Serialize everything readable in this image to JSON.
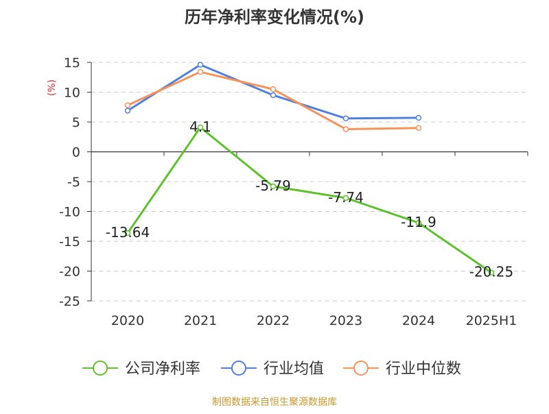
{
  "chart_data": {
    "type": "line",
    "title": "历年净利率变化情况(%)",
    "ylabel": "(%)",
    "xlabel": "",
    "categories": [
      "2020",
      "2021",
      "2022",
      "2023",
      "2024",
      "2025H1"
    ],
    "ylim": [
      -25,
      15
    ],
    "yticks": [
      15,
      10,
      5,
      0,
      -5,
      -10,
      -15,
      -20,
      -25
    ],
    "grid": true,
    "legend_position": "bottom",
    "series": [
      {
        "name": "公司净利率",
        "color": "#5cc12c",
        "values": [
          -13.64,
          4.1,
          -5.79,
          -7.74,
          -11.9,
          -20.25
        ],
        "data_labels": [
          "-13.64",
          "4.1",
          "-5.79",
          "-7.74",
          "-11.9",
          "-20.25"
        ]
      },
      {
        "name": "行业均值",
        "color": "#4f7fdc",
        "values": [
          6.9,
          14.6,
          9.5,
          5.6,
          5.7,
          null
        ]
      },
      {
        "name": "行业中位数",
        "color": "#f6925a",
        "values": [
          7.8,
          13.4,
          10.5,
          3.8,
          4.0,
          null
        ]
      }
    ],
    "source": "制图数据来自恒生聚源数据库"
  }
}
